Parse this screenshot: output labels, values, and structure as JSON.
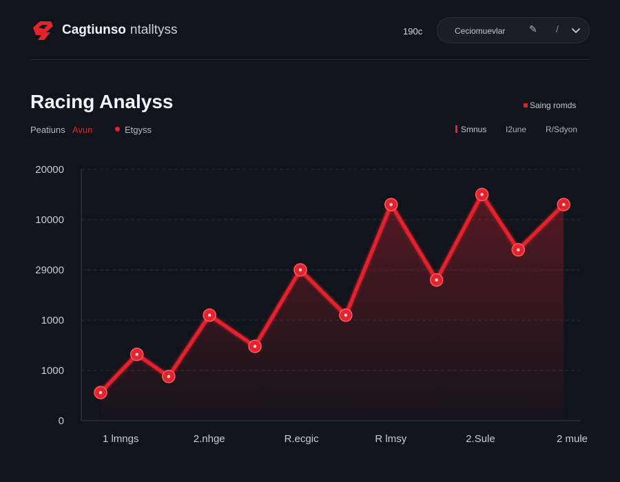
{
  "header": {
    "brand_strong": "Cagtiunso",
    "brand_light": "ntalltyss",
    "top_value": "190c",
    "selector_label": "Ceciomuevlar",
    "edit_icon": "pencil-icon",
    "divider_icon": "slash-icon",
    "chevron_icon": "chevron-down-icon"
  },
  "page": {
    "title": "Racing Analyss",
    "sub_label": "Peatiuns",
    "sub_accent": "Avun",
    "sub_legend": "Etgyss",
    "right_label": "Saing romds",
    "legend_items": [
      "Smnus",
      "I2une",
      "R/Sdyon"
    ]
  },
  "colors": {
    "background": "#12141b",
    "accent": "#e3242e",
    "grid": "#2a2d37"
  },
  "chart_data": {
    "type": "line",
    "title": "Racing Analyss",
    "ytick_labels": [
      "0",
      "1000",
      "1000",
      "29000",
      "10000",
      "20000"
    ],
    "ytick_values": [
      0,
      1,
      2,
      3,
      4,
      5
    ],
    "xtick_labels": [
      "1 lmngs",
      "2.nhge",
      "R.ecgic",
      "R lmsy",
      "2.Sule",
      "2 mule"
    ],
    "xtick_positions": [
      0.5,
      2.5,
      4.5,
      6.5,
      8.5,
      10.5
    ],
    "ylim": [
      0,
      5
    ],
    "xlim": [
      0,
      10.5
    ],
    "grid": true,
    "area_fill": true,
    "series": [
      {
        "x": [
          0,
          0.8,
          1.5,
          2.4,
          3.4,
          4.4,
          5.4,
          6.4,
          7.4,
          8.4,
          9.2,
          10.2
        ],
        "values": [
          0.56,
          1.32,
          0.88,
          2.1,
          1.48,
          3.0,
          2.1,
          4.3,
          2.8,
          4.5,
          3.4,
          4.3
        ]
      }
    ]
  }
}
